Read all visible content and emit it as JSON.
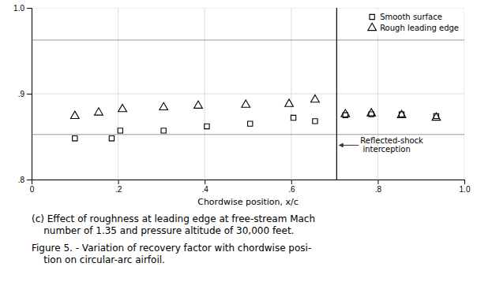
{
  "chart_data": {
    "type": "scatter",
    "xlabel": "Chordwise position, x/c",
    "xlim": [
      0.0,
      1.0
    ],
    "ylim": [
      0.8,
      1.0
    ],
    "xticks": [
      0,
      {
        "value": 0.2,
        "label": ".2"
      },
      {
        "value": 0.4,
        "label": ".4"
      },
      {
        "value": 0.6,
        "label": ".6"
      },
      {
        "value": 0.8,
        "label": ".8"
      },
      {
        "value": 1.0,
        "label": "1.0"
      }
    ],
    "yticks": [
      {
        "value": 0.8,
        "label": ".8"
      },
      {
        "value": 0.9,
        "label": ".9"
      },
      {
        "value": 1.0,
        "label": "1.0"
      }
    ],
    "grid": true,
    "legend": "upper right",
    "series": [
      {
        "name": "Smooth surface",
        "color": "#000000",
        "marker": "square",
        "x": [
          0.1,
          0.185,
          0.205,
          0.305,
          0.405,
          0.505,
          0.605,
          0.655,
          0.725,
          0.785,
          0.855,
          0.935
        ],
        "values": [
          0.848,
          0.848,
          0.857,
          0.857,
          0.862,
          0.865,
          0.872,
          0.868,
          0.875,
          0.876,
          0.876,
          0.874
        ]
      },
      {
        "name": "Rough leading edge",
        "color": "#000000",
        "marker": "triangle",
        "x": [
          0.1,
          0.155,
          0.21,
          0.305,
          0.385,
          0.495,
          0.595,
          0.655,
          0.725,
          0.785,
          0.855,
          0.935
        ],
        "values": [
          0.874,
          0.878,
          0.882,
          0.884,
          0.886,
          0.887,
          0.888,
          0.893,
          0.876,
          0.877,
          0.875,
          0.872
        ]
      }
    ],
    "hlines": [
      0.9625,
      0.8525
    ],
    "shock_line": {
      "x": 0.705,
      "color": "#000000",
      "label": [
        "Reflected-shock",
        " interception"
      ],
      "label_y": 0.84
    },
    "caption": [
      "(c) Effect of roughness at leading edge at free-stream Mach",
      "    number of 1.35 and pressure altitude of 30,000 feet.",
      "Figure 5. - Variation of recovery factor with chordwise posi-",
      "    tion on circular-arc airfoil."
    ]
  }
}
